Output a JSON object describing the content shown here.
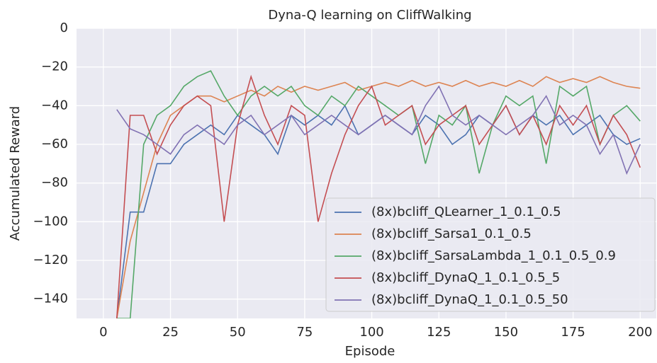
{
  "chart_data": {
    "type": "line",
    "title": "Dyna-Q learning on CliffWalking",
    "xlabel": "Episode",
    "ylabel": "Accumulated Reward",
    "x": [
      5,
      10,
      15,
      20,
      25,
      30,
      35,
      40,
      45,
      50,
      55,
      60,
      65,
      70,
      75,
      80,
      85,
      90,
      95,
      100,
      105,
      110,
      115,
      120,
      125,
      130,
      135,
      140,
      145,
      150,
      155,
      160,
      165,
      170,
      175,
      180,
      185,
      190,
      195,
      200
    ],
    "series": [
      {
        "name": "(8x)bcliff_QLearner_1_0.1_0.5",
        "color": "#4c72b0",
        "values": [
          -150,
          -95,
          -95,
          -70,
          -70,
          -60,
          -55,
          -50,
          -55,
          -45,
          -50,
          -55,
          -65,
          -45,
          -50,
          -45,
          -50,
          -40,
          -55,
          -50,
          -45,
          -50,
          -55,
          -45,
          -50,
          -60,
          -55,
          -45,
          -50,
          -40,
          -55,
          -45,
          -50,
          -45,
          -55,
          -50,
          -45,
          -55,
          -60,
          -57
        ]
      },
      {
        "name": "(8x)bcliff_Sarsa1_0.1_0.5",
        "color": "#dd8452",
        "values": [
          -150,
          -110,
          -85,
          -60,
          -45,
          -40,
          -35,
          -35,
          -38,
          -35,
          -32,
          -35,
          -30,
          -33,
          -30,
          -32,
          -30,
          -28,
          -32,
          -30,
          -28,
          -30,
          -27,
          -30,
          -28,
          -30,
          -27,
          -30,
          -28,
          -30,
          -27,
          -30,
          -25,
          -28,
          -26,
          -28,
          -25,
          -28,
          -30,
          -31
        ]
      },
      {
        "name": "(8x)bcliff_SarsaLambda_1_0.1_0.5_0.9",
        "color": "#55a868",
        "values": [
          -150,
          -150,
          -60,
          -45,
          -40,
          -30,
          -25,
          -22,
          -35,
          -45,
          -35,
          -30,
          -35,
          -30,
          -40,
          -45,
          -35,
          -40,
          -30,
          -35,
          -40,
          -45,
          -40,
          -70,
          -45,
          -50,
          -40,
          -75,
          -50,
          -35,
          -40,
          -35,
          -70,
          -30,
          -35,
          -30,
          -60,
          -45,
          -40,
          -48
        ]
      },
      {
        "name": "(8x)bcliff_DynaQ_1_0.1_0.5_5",
        "color": "#c44e52",
        "values": [
          -150,
          -45,
          -45,
          -65,
          -50,
          -40,
          -35,
          -40,
          -100,
          -50,
          -25,
          -45,
          -60,
          -40,
          -45,
          -100,
          -75,
          -55,
          -40,
          -30,
          -50,
          -45,
          -40,
          -60,
          -50,
          -45,
          -40,
          -60,
          -50,
          -40,
          -55,
          -45,
          -60,
          -40,
          -50,
          -40,
          -60,
          -45,
          -55,
          -72
        ]
      },
      {
        "name": "(8x)bcliff_DynaQ_1_0.1_0.5_50",
        "color": "#8172b3",
        "values": [
          -42,
          -52,
          -55,
          -60,
          -65,
          -55,
          -50,
          -55,
          -60,
          -50,
          -45,
          -55,
          -50,
          -45,
          -55,
          -50,
          -45,
          -50,
          -55,
          -50,
          -45,
          -50,
          -55,
          -40,
          -30,
          -45,
          -50,
          -45,
          -50,
          -55,
          -50,
          -45,
          -35,
          -50,
          -45,
          -50,
          -65,
          -55,
          -75,
          -60
        ]
      }
    ],
    "xlim": [
      -10,
      206
    ],
    "ylim": [
      -150,
      0
    ],
    "xticks": [
      0,
      25,
      50,
      75,
      100,
      125,
      150,
      175,
      200
    ],
    "yticks": [
      {
        "value": -140,
        "label": "−140"
      },
      {
        "value": -120,
        "label": "−120"
      },
      {
        "value": -100,
        "label": "−100"
      },
      {
        "value": -80,
        "label": "−80"
      },
      {
        "value": -60,
        "label": "−60"
      },
      {
        "value": -40,
        "label": "−40"
      },
      {
        "value": -20,
        "label": "−20"
      },
      0
    ],
    "grid": true,
    "legend": "lower right"
  }
}
